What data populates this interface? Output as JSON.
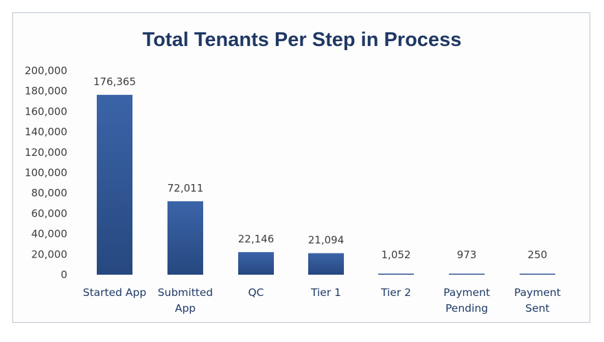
{
  "chart_data": {
    "type": "bar",
    "title": "Total Tenants Per Step in Process",
    "xlabel": "",
    "ylabel": "",
    "categories": [
      [
        "Started App"
      ],
      [
        "Submitted",
        "App"
      ],
      [
        "QC"
      ],
      [
        "Tier 1"
      ],
      [
        "Tier 2"
      ],
      [
        "Payment",
        "Pending"
      ],
      [
        "Payment",
        "Sent"
      ]
    ],
    "values": [
      176365,
      72011,
      22146,
      21094,
      1052,
      973,
      250
    ],
    "data_labels": [
      "176,365",
      "72,011",
      "22,146",
      "21,094",
      "1,052",
      "973",
      "250"
    ],
    "ylim": [
      0,
      200000
    ],
    "yticks": [
      0,
      20000,
      40000,
      60000,
      80000,
      100000,
      120000,
      140000,
      160000,
      180000,
      200000
    ],
    "ytick_labels": [
      "0",
      "20,000",
      "40,000",
      "60,000",
      "80,000",
      "100,000",
      "120,000",
      "140,000",
      "160,000",
      "180,000",
      "200,000"
    ],
    "grid": false,
    "legend": "none",
    "bar_color": "#3b64a8",
    "bar_color_dark": "#26487f"
  }
}
